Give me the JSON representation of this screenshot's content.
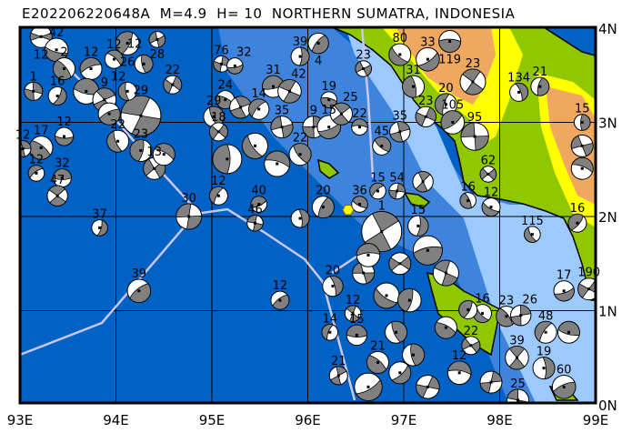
{
  "title": "E202206220648A  M=4.9  H= 10  NORTHERN SUMATRA, INDONESIA",
  "map": {
    "extent": {
      "lon": [
        93,
        99
      ],
      "lat": [
        0,
        4
      ]
    },
    "lon_labels": [
      "93E",
      "94E",
      "95E",
      "96E",
      "97E",
      "98E",
      "99E"
    ],
    "lat_labels": [
      "0N",
      "1N",
      "2N",
      "3N",
      "4N"
    ],
    "colors": {
      "deep_ocean": "#0062c4",
      "mid_ocean": "#3f84dc",
      "shelf": "#9ccaff",
      "lowland": "#90c800",
      "upland": "#ffff00",
      "highland": "#f0a860",
      "plate_boundary": "#c8c8f0",
      "ball_fill": "#808080",
      "main_event": "#ffff00"
    },
    "main_event": {
      "lon": 96.42,
      "lat": 2.07,
      "symbol": "yellow-hexagon"
    }
  },
  "events": [
    {
      "lon": 93.22,
      "lat": 3.91,
      "depth": "12",
      "mag": 5.0
    },
    {
      "lon": 93.38,
      "lat": 3.77,
      "depth": "42",
      "mag": 5.1
    },
    {
      "lon": 93.46,
      "lat": 3.57,
      "depth": "2",
      "mag": 5.0
    },
    {
      "lon": 93.14,
      "lat": 3.33,
      "depth": "1",
      "mag": 4.75
    },
    {
      "lon": 93.74,
      "lat": 3.57,
      "depth": "12",
      "mag": 5.0
    },
    {
      "lon": 93.69,
      "lat": 3.33,
      "depth": "",
      "mag": 5.25
    },
    {
      "lon": 93.88,
      "lat": 3.24,
      "depth": "9",
      "mag": 5.1
    },
    {
      "lon": 93.39,
      "lat": 3.28,
      "depth": "16",
      "mag": 4.75
    },
    {
      "lon": 93.93,
      "lat": 3.09,
      "depth": "",
      "mag": 5.0
    },
    {
      "lon": 94.26,
      "lat": 3.07,
      "depth": "29",
      "mag": 6.25
    },
    {
      "lon": 94.12,
      "lat": 3.33,
      "depth": "12",
      "mag": 4.75
    },
    {
      "lon": 94.12,
      "lat": 3.84,
      "depth": "26",
      "mag": 5.1
    },
    {
      "lon": 94.43,
      "lat": 3.88,
      "depth": "28",
      "mag": 4.6
    },
    {
      "lon": 93.98,
      "lat": 3.67,
      "depth": "12",
      "mag": 4.75
    },
    {
      "lon": 94.29,
      "lat": 3.62,
      "depth": "12",
      "mag": 4.75
    },
    {
      "lon": 94.59,
      "lat": 3.4,
      "depth": "22",
      "mag": 4.75
    },
    {
      "lon": 93.46,
      "lat": 2.85,
      "depth": "12",
      "mag": 4.75
    },
    {
      "lon": 93.22,
      "lat": 2.73,
      "depth": "17",
      "mag": 5.1
    },
    {
      "lon": 93.03,
      "lat": 2.72,
      "depth": "12",
      "mag": 4.6
    },
    {
      "lon": 93.17,
      "lat": 2.46,
      "depth": "12",
      "mag": 4.6
    },
    {
      "lon": 93.44,
      "lat": 2.41,
      "depth": "32",
      "mag": 4.75
    },
    {
      "lon": 93.39,
      "lat": 2.22,
      "depth": "47",
      "mag": 4.9
    },
    {
      "lon": 93.83,
      "lat": 1.88,
      "depth": "37",
      "mag": 4.6
    },
    {
      "lon": 94.24,
      "lat": 1.21,
      "depth": "39",
      "mag": 5.1
    },
    {
      "lon": 94.76,
      "lat": 2.0,
      "depth": "30",
      "mag": 5.25
    },
    {
      "lon": 94.02,
      "lat": 2.8,
      "depth": "22",
      "mag": 5.0
    },
    {
      "lon": 94.26,
      "lat": 2.7,
      "depth": "23",
      "mag": 5.0
    },
    {
      "lon": 94.4,
      "lat": 2.51,
      "depth": "13",
      "mag": 5.0
    },
    {
      "lon": 94.5,
      "lat": 2.66,
      "depth": "",
      "mag": 5.0
    },
    {
      "lon": 95.02,
      "lat": 3.06,
      "depth": "29",
      "mag": 4.9
    },
    {
      "lon": 95.1,
      "lat": 3.62,
      "depth": "76",
      "mag": 4.6
    },
    {
      "lon": 95.24,
      "lat": 3.6,
      "depth": "32",
      "mag": 4.6
    },
    {
      "lon": 95.14,
      "lat": 3.24,
      "depth": "24",
      "mag": 4.75
    },
    {
      "lon": 95.3,
      "lat": 3.16,
      "depth": "",
      "mag": 5.0
    },
    {
      "lon": 95.49,
      "lat": 3.14,
      "depth": "14",
      "mag": 4.9
    },
    {
      "lon": 95.64,
      "lat": 3.38,
      "depth": "31",
      "mag": 5.0
    },
    {
      "lon": 95.81,
      "lat": 3.33,
      "depth": "42",
      "mag": 5.1
    },
    {
      "lon": 95.92,
      "lat": 3.7,
      "depth": "39",
      "mag": 4.75
    },
    {
      "lon": 96.11,
      "lat": 3.84,
      "depth": "4",
      "mag": 4.9
    },
    {
      "lon": 95.73,
      "lat": 2.95,
      "depth": "35",
      "mag": 5.0
    },
    {
      "lon": 95.45,
      "lat": 2.75,
      "depth": "",
      "mag": 5.25
    },
    {
      "lon": 95.16,
      "lat": 2.61,
      "depth": "",
      "mag": 5.5
    },
    {
      "lon": 95.07,
      "lat": 2.9,
      "depth": "18",
      "mag": 4.75
    },
    {
      "lon": 95.68,
      "lat": 2.56,
      "depth": "",
      "mag": 5.25
    },
    {
      "lon": 95.92,
      "lat": 2.66,
      "depth": "22",
      "mag": 5.0
    },
    {
      "lon": 96.06,
      "lat": 2.95,
      "depth": "9",
      "mag": 5.0
    },
    {
      "lon": 96.22,
      "lat": 2.95,
      "depth": "15",
      "mag": 5.1
    },
    {
      "lon": 96.22,
      "lat": 3.24,
      "depth": "19",
      "mag": 4.6
    },
    {
      "lon": 96.35,
      "lat": 3.09,
      "depth": "25",
      "mag": 5.0
    },
    {
      "lon": 95.07,
      "lat": 2.22,
      "depth": "12",
      "mag": 4.75
    },
    {
      "lon": 95.49,
      "lat": 2.13,
      "depth": "40",
      "mag": 4.6
    },
    {
      "lon": 95.45,
      "lat": 1.93,
      "depth": "46",
      "mag": 4.6
    },
    {
      "lon": 95.92,
      "lat": 1.98,
      "depth": "",
      "mag": 4.75
    },
    {
      "lon": 96.16,
      "lat": 2.1,
      "depth": "20",
      "mag": 5.0
    },
    {
      "lon": 96.58,
      "lat": 3.57,
      "depth": "23",
      "mag": 4.6
    },
    {
      "lon": 96.96,
      "lat": 3.72,
      "depth": "80",
      "mag": 5.0
    },
    {
      "lon": 97.1,
      "lat": 3.38,
      "depth": "31",
      "mag": 5.0
    },
    {
      "lon": 97.23,
      "lat": 3.06,
      "depth": "23",
      "mag": 4.9
    },
    {
      "lon": 96.54,
      "lat": 2.95,
      "depth": "22",
      "mag": 4.6
    },
    {
      "lon": 96.77,
      "lat": 2.75,
      "depth": "45",
      "mag": 4.75
    },
    {
      "lon": 96.96,
      "lat": 2.9,
      "depth": "35",
      "mag": 4.9
    },
    {
      "lon": 97.25,
      "lat": 3.67,
      "depth": "33",
      "mag": 5.1
    },
    {
      "lon": 97.48,
      "lat": 3.86,
      "depth": "119",
      "mag": 5.0
    },
    {
      "lon": 97.72,
      "lat": 3.43,
      "depth": "23",
      "mag": 5.25
    },
    {
      "lon": 97.44,
      "lat": 3.19,
      "depth": "20",
      "mag": 5.0
    },
    {
      "lon": 97.51,
      "lat": 3.0,
      "depth": "105",
      "mag": 5.1
    },
    {
      "lon": 97.74,
      "lat": 2.85,
      "depth": "95",
      "mag": 5.4
    },
    {
      "lon": 98.2,
      "lat": 3.32,
      "depth": "134",
      "mag": 4.75
    },
    {
      "lon": 98.42,
      "lat": 3.38,
      "depth": "21",
      "mag": 4.75
    },
    {
      "lon": 97.88,
      "lat": 2.45,
      "depth": "62",
      "mag": 4.6
    },
    {
      "lon": 97.91,
      "lat": 2.1,
      "depth": "12",
      "mag": 4.75
    },
    {
      "lon": 97.67,
      "lat": 2.17,
      "depth": "16",
      "mag": 4.6
    },
    {
      "lon": 96.93,
      "lat": 2.27,
      "depth": "54",
      "mag": 4.6
    },
    {
      "lon": 96.73,
      "lat": 2.27,
      "depth": "15",
      "mag": 4.6
    },
    {
      "lon": 96.54,
      "lat": 2.13,
      "depth": "36",
      "mag": 4.6
    },
    {
      "lon": 96.77,
      "lat": 1.84,
      "depth": "1",
      "mag": 6.25
    },
    {
      "lon": 97.15,
      "lat": 1.9,
      "depth": "15",
      "mag": 4.9
    },
    {
      "lon": 97.25,
      "lat": 1.64,
      "depth": "",
      "mag": 5.5
    },
    {
      "lon": 97.44,
      "lat": 1.4,
      "depth": "",
      "mag": 5.25
    },
    {
      "lon": 98.34,
      "lat": 1.81,
      "depth": "115",
      "mag": 4.6
    },
    {
      "lon": 98.81,
      "lat": 1.93,
      "depth": "16",
      "mag": 4.75
    },
    {
      "lon": 98.86,
      "lat": 2.75,
      "depth": "",
      "mag": 5.0
    },
    {
      "lon": 98.86,
      "lat": 2.51,
      "depth": "",
      "mag": 5.0
    },
    {
      "lon": 98.86,
      "lat": 3.0,
      "depth": "15",
      "mag": 4.6
    },
    {
      "lon": 98.93,
      "lat": 1.23,
      "depth": "190",
      "mag": 5.0
    },
    {
      "lon": 98.67,
      "lat": 1.21,
      "depth": "17",
      "mag": 4.9
    },
    {
      "lon": 98.07,
      "lat": 0.94,
      "depth": "23",
      "mag": 4.9
    },
    {
      "lon": 98.22,
      "lat": 0.95,
      "depth": "26",
      "mag": 4.9
    },
    {
      "lon": 98.48,
      "lat": 0.77,
      "depth": "48",
      "mag": 5.0
    },
    {
      "lon": 98.72,
      "lat": 0.77,
      "depth": "",
      "mag": 5.0
    },
    {
      "lon": 98.18,
      "lat": 0.5,
      "depth": "39",
      "mag": 5.1
    },
    {
      "lon": 98.46,
      "lat": 0.39,
      "depth": "19",
      "mag": 5.0
    },
    {
      "lon": 98.67,
      "lat": 0.19,
      "depth": "60",
      "mag": 5.1
    },
    {
      "lon": 98.19,
      "lat": 0.05,
      "depth": "25",
      "mag": 5.0
    },
    {
      "lon": 97.82,
      "lat": 0.97,
      "depth": "16",
      "mag": 4.75
    },
    {
      "lon": 97.67,
      "lat": 1.01,
      "depth": "",
      "mag": 4.75
    },
    {
      "lon": 97.7,
      "lat": 0.63,
      "depth": "22",
      "mag": 4.75
    },
    {
      "lon": 97.58,
      "lat": 0.34,
      "depth": "12",
      "mag": 5.1
    },
    {
      "lon": 97.1,
      "lat": 0.53,
      "depth": "",
      "mag": 5.0
    },
    {
      "lon": 97.25,
      "lat": 0.19,
      "depth": "",
      "mag": 5.1
    },
    {
      "lon": 96.63,
      "lat": 0.19,
      "depth": "",
      "mag": 5.4
    },
    {
      "lon": 96.73,
      "lat": 0.45,
      "depth": "21",
      "mag": 5.0
    },
    {
      "lon": 96.32,
      "lat": 0.31,
      "depth": "21",
      "mag": 4.75
    },
    {
      "lon": 96.23,
      "lat": 0.77,
      "depth": "14",
      "mag": 4.6
    },
    {
      "lon": 96.51,
      "lat": 0.74,
      "depth": "15",
      "mag": 4.9
    },
    {
      "lon": 96.47,
      "lat": 0.97,
      "depth": "12",
      "mag": 4.6
    },
    {
      "lon": 96.26,
      "lat": 1.26,
      "depth": "20",
      "mag": 4.9
    },
    {
      "lon": 95.71,
      "lat": 1.11,
      "depth": "12",
      "mag": 4.75
    },
    {
      "lon": 96.58,
      "lat": 1.4,
      "depth": "",
      "mag": 5.0
    },
    {
      "lon": 96.82,
      "lat": 1.16,
      "depth": "",
      "mag": 5.25
    },
    {
      "lon": 97.06,
      "lat": 1.11,
      "depth": "",
      "mag": 5.1
    },
    {
      "lon": 96.96,
      "lat": 1.5,
      "depth": "",
      "mag": 5.0
    },
    {
      "lon": 96.63,
      "lat": 1.59,
      "depth": "",
      "mag": 5.1
    },
    {
      "lon": 96.92,
      "lat": 0.77,
      "depth": "",
      "mag": 5.0
    },
    {
      "lon": 97.91,
      "lat": 0.24,
      "depth": "",
      "mag": 5.0
    },
    {
      "lon": 96.96,
      "lat": 0.34,
      "depth": "",
      "mag": 5.0
    },
    {
      "lon": 97.44,
      "lat": 0.82,
      "depth": "",
      "mag": 5.0
    },
    {
      "lon": 97.2,
      "lat": 2.37,
      "depth": "",
      "mag": 4.9
    }
  ]
}
